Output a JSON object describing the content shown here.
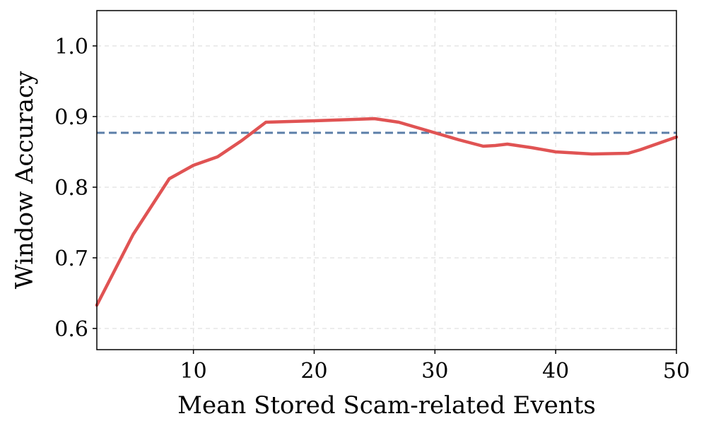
{
  "chart_data": {
    "type": "line",
    "title": "",
    "xlabel": "Mean Stored Scam-related Events",
    "ylabel": "Window Accuracy",
    "xlim": [
      2,
      50
    ],
    "ylim": [
      0.57,
      1.05
    ],
    "grid": true,
    "x_ticks": [
      10,
      20,
      30,
      40,
      50
    ],
    "x_tick_labels": [
      "10",
      "20",
      "30",
      "40",
      "50"
    ],
    "y_ticks": [
      0.6,
      0.7,
      0.8,
      0.9,
      1.0
    ],
    "y_tick_labels": [
      "0.6",
      "0.7",
      "0.8",
      "0.9",
      "1.0"
    ],
    "series": [
      {
        "color": "#e05353",
        "x": [
          2,
          5,
          8,
          10,
          12,
          14,
          16,
          20,
          25,
          27,
          30,
          32,
          34,
          35,
          36,
          38,
          40,
          43,
          46,
          47,
          50
        ],
        "y": [
          0.633,
          0.733,
          0.812,
          0.831,
          0.843,
          0.866,
          0.892,
          0.894,
          0.897,
          0.892,
          0.877,
          0.867,
          0.858,
          0.859,
          0.861,
          0.856,
          0.85,
          0.847,
          0.848,
          0.853,
          0.871
        ]
      }
    ],
    "reference_line": {
      "y": 0.877,
      "color": "#5b7ea8",
      "style": "dashed"
    }
  }
}
